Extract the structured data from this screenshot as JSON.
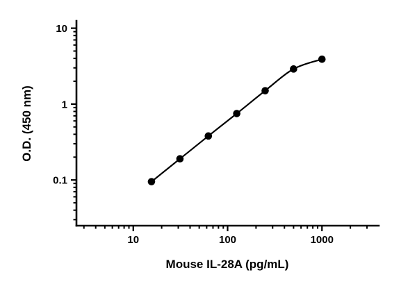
{
  "chart_data": {
    "type": "scatter",
    "title": "",
    "xlabel": "Mouse IL-28A (pg/mL)",
    "ylabel": "O.D. (450 nm)",
    "x_scale": "log",
    "y_scale": "log",
    "xlim": [
      2.5,
      4000
    ],
    "ylim": [
      0.025,
      12.5
    ],
    "x_major_ticks": [
      10,
      100,
      1000
    ],
    "y_major_ticks": [
      0.1,
      1,
      10
    ],
    "x": [
      15.6,
      31.25,
      62.5,
      125,
      250,
      500,
      1000
    ],
    "y": [
      0.095,
      0.19,
      0.38,
      0.75,
      1.5,
      2.9,
      3.9
    ],
    "marker_color": "#000000",
    "line_color": "#000000",
    "grid": "off",
    "legend": "none"
  }
}
